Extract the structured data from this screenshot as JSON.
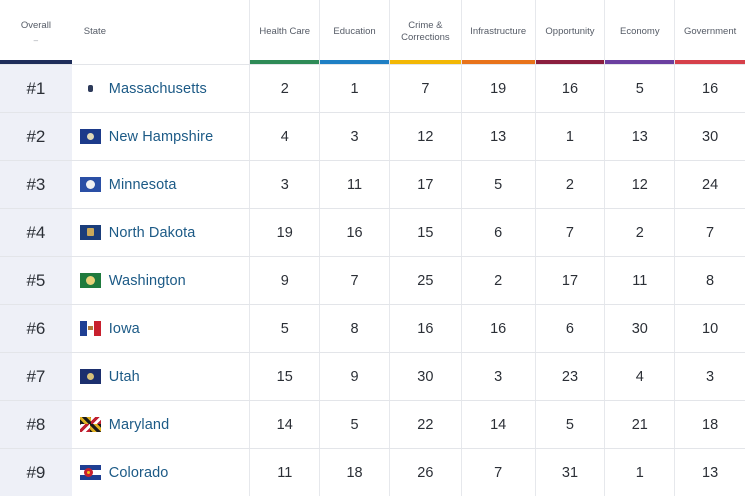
{
  "header": {
    "overall": "Overall",
    "overall_sort": "‒",
    "state": "State",
    "columns": [
      {
        "label": "Health Care",
        "color": "#2e8b57"
      },
      {
        "label": "Education",
        "color": "#1f7fc4"
      },
      {
        "label": "Crime &\nCorrections",
        "color": "#f2b705"
      },
      {
        "label": "Infrastructure",
        "color": "#e8731a"
      },
      {
        "label": "Opportunity",
        "color": "#8b1e3f"
      },
      {
        "label": "Economy",
        "color": "#6b3fa0"
      },
      {
        "label": "Government",
        "color": "#d6404a"
      }
    ],
    "overall_bar_color": "#1e2d5a"
  },
  "rows": [
    {
      "rank": "#1",
      "state": "Massachusetts",
      "flag": "f-ma",
      "values": [
        "2",
        "1",
        "7",
        "19",
        "16",
        "5",
        "16"
      ]
    },
    {
      "rank": "#2",
      "state": "New Hampshire",
      "flag": "f-nh",
      "values": [
        "4",
        "3",
        "12",
        "13",
        "1",
        "13",
        "30"
      ]
    },
    {
      "rank": "#3",
      "state": "Minnesota",
      "flag": "f-mn",
      "values": [
        "3",
        "11",
        "17",
        "5",
        "2",
        "12",
        "24"
      ]
    },
    {
      "rank": "#4",
      "state": "North Dakota",
      "flag": "f-nd",
      "values": [
        "19",
        "16",
        "15",
        "6",
        "7",
        "2",
        "7"
      ]
    },
    {
      "rank": "#5",
      "state": "Washington",
      "flag": "f-wa",
      "values": [
        "9",
        "7",
        "25",
        "2",
        "17",
        "11",
        "8"
      ]
    },
    {
      "rank": "#6",
      "state": "Iowa",
      "flag": "f-ia",
      "values": [
        "5",
        "8",
        "16",
        "16",
        "6",
        "30",
        "10"
      ]
    },
    {
      "rank": "#7",
      "state": "Utah",
      "flag": "f-ut",
      "values": [
        "15",
        "9",
        "30",
        "3",
        "23",
        "4",
        "3"
      ]
    },
    {
      "rank": "#8",
      "state": "Maryland",
      "flag": "f-md",
      "values": [
        "14",
        "5",
        "22",
        "14",
        "5",
        "21",
        "18"
      ]
    },
    {
      "rank": "#9",
      "state": "Colorado",
      "flag": "f-co",
      "values": [
        "11",
        "18",
        "26",
        "7",
        "31",
        "1",
        "13"
      ]
    }
  ]
}
